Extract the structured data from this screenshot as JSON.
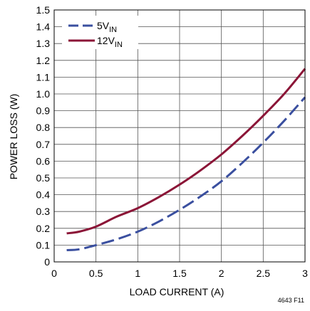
{
  "chart_data": {
    "type": "line",
    "xlabel": "LOAD CURRENT (A)",
    "ylabel": "POWER LOSS (W)",
    "xlim": [
      0,
      3
    ],
    "ylim": [
      0,
      1.5
    ],
    "grid": true,
    "legend_position": "top-left",
    "x_ticks": [
      "0",
      "0.5",
      "1",
      "1.5",
      "2",
      "2.5",
      "3"
    ],
    "y_ticks": [
      "0",
      "0.1",
      "0.2",
      "0.3",
      "0.4",
      "0.5",
      "0.6",
      "0.7",
      "0.8",
      "0.9",
      "1.0",
      "1.1",
      "1.2",
      "1.3",
      "1.4",
      "1.5"
    ],
    "series": [
      {
        "name_main": "5V",
        "name_sub": "IN",
        "color": "#3a4f9f",
        "dash": true,
        "x": [
          0.15,
          0.3,
          0.5,
          0.75,
          1.0,
          1.25,
          1.5,
          1.75,
          2.0,
          2.25,
          2.5,
          2.75,
          3.0
        ],
        "y": [
          0.07,
          0.075,
          0.1,
          0.135,
          0.18,
          0.24,
          0.31,
          0.39,
          0.48,
          0.59,
          0.71,
          0.84,
          0.98
        ]
      },
      {
        "name_main": "12V",
        "name_sub": "IN",
        "color": "#8b1537",
        "dash": false,
        "x": [
          0.15,
          0.3,
          0.5,
          0.75,
          1.0,
          1.25,
          1.5,
          1.75,
          2.0,
          2.25,
          2.5,
          2.75,
          3.0
        ],
        "y": [
          0.17,
          0.18,
          0.21,
          0.27,
          0.32,
          0.385,
          0.46,
          0.545,
          0.64,
          0.75,
          0.87,
          1.0,
          1.15
        ]
      }
    ]
  },
  "figure_id": "4643 F11"
}
